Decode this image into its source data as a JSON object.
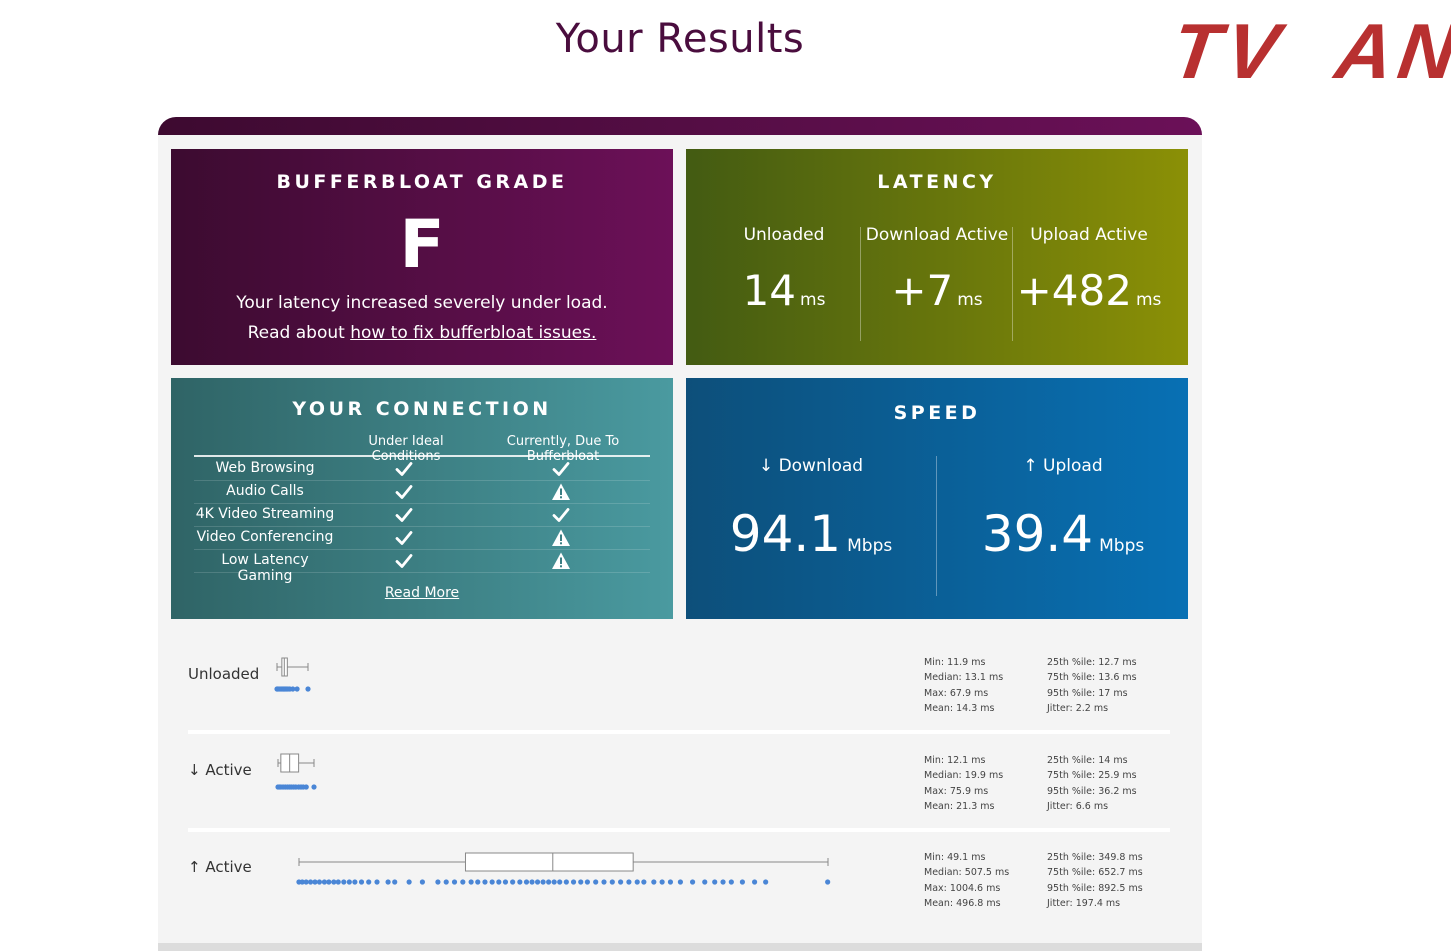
{
  "page_title": "Your Results",
  "watermark": "TV  AN",
  "grade": {
    "title": "BUFFERBLOAT GRADE",
    "letter": "F",
    "description": "Your latency increased severely under load.",
    "read_prefix": "Read about ",
    "read_link": "how to fix bufferbloat issues."
  },
  "latency": {
    "title": "LATENCY",
    "columns": [
      {
        "label": "Unloaded",
        "value": "14",
        "unit": "ms"
      },
      {
        "label": "Download Active",
        "value": "+7",
        "unit": "ms"
      },
      {
        "label": "Upload Active",
        "value": "+482",
        "unit": "ms"
      }
    ]
  },
  "connection": {
    "title": "YOUR CONNECTION",
    "header_ideal": "Under Ideal Conditions",
    "header_current": "Currently, Due To Bufferbloat",
    "rows": [
      {
        "name": "Web Browsing",
        "ideal": "check",
        "current": "check"
      },
      {
        "name": "Audio Calls",
        "ideal": "check",
        "current": "warning"
      },
      {
        "name": "4K Video Streaming",
        "ideal": "check",
        "current": "check"
      },
      {
        "name": "Video Conferencing",
        "ideal": "check",
        "current": "warning"
      },
      {
        "name": "Low Latency Gaming",
        "ideal": "check",
        "current": "warning"
      }
    ],
    "read_more": "Read More"
  },
  "speed": {
    "title": "SPEED",
    "download": {
      "label": "↓ Download",
      "value": "94.1",
      "unit": "Mbps"
    },
    "upload": {
      "label": "↑ Upload",
      "value": "39.4",
      "unit": "Mbps"
    }
  },
  "stats": [
    {
      "label": "Unloaded",
      "left": [
        "Min: 11.9 ms",
        "Median: 13.1 ms",
        "Max: 67.9 ms",
        "Mean: 14.3 ms"
      ],
      "right": [
        "25th %ile: 12.7 ms",
        "75th %ile: 13.6 ms",
        "95th %ile: 17 ms",
        "Jitter: 2.2 ms"
      ],
      "box": {
        "min": 11.9,
        "q1": 12.7,
        "median": 13.1,
        "q3": 13.6,
        "max": 17
      },
      "points": [
        11.9,
        12.0,
        12.2,
        12.4,
        12.6,
        12.8,
        13.0,
        13.1,
        13.3,
        13.5,
        13.7,
        14.0,
        14.5,
        15.2,
        17.0
      ]
    },
    {
      "label": "↓ Active",
      "left": [
        "Min: 12.1 ms",
        "Median: 19.9 ms",
        "Max: 75.9 ms",
        "Mean: 21.3 ms"
      ],
      "right": [
        "25th %ile: 14 ms",
        "75th %ile: 25.9 ms",
        "95th %ile: 36.2 ms",
        "Jitter: 6.6 ms"
      ],
      "box": {
        "min": 12.1,
        "q1": 14,
        "median": 19.9,
        "q3": 25.9,
        "max": 36.2
      },
      "points": [
        12.1,
        13.0,
        14.0,
        15.5,
        17.0,
        18.5,
        19.9,
        21.0,
        22.5,
        24.0,
        25.9,
        27.5,
        29.0,
        31.0,
        36.2
      ]
    },
    {
      "label": "↑ Active",
      "left": [
        "Min: 49.1 ms",
        "Median: 507.5 ms",
        "Max: 1004.6 ms",
        "Mean: 496.8 ms"
      ],
      "right": [
        "25th %ile: 349.8 ms",
        "75th %ile: 652.7 ms",
        "95th %ile: 892.5 ms",
        "Jitter: 197.4 ms"
      ],
      "box": {
        "min": 49.1,
        "q1": 349.8,
        "median": 507.5,
        "q3": 652.7,
        "max": 1004.6
      },
      "points": [
        49,
        55,
        62,
        70,
        78,
        86,
        95,
        103,
        112,
        120,
        130,
        140,
        150,
        162,
        175,
        190,
        210,
        222,
        248,
        272,
        300,
        315,
        330,
        345,
        360,
        372,
        385,
        398,
        410,
        422,
        435,
        448,
        460,
        470,
        480,
        490,
        500,
        510,
        520,
        532,
        545,
        558,
        570,
        585,
        600,
        615,
        630,
        645,
        660,
        672,
        690,
        705,
        720,
        738,
        760,
        782,
        800,
        815,
        830,
        850,
        872,
        892,
        1004
      ]
    }
  ]
}
